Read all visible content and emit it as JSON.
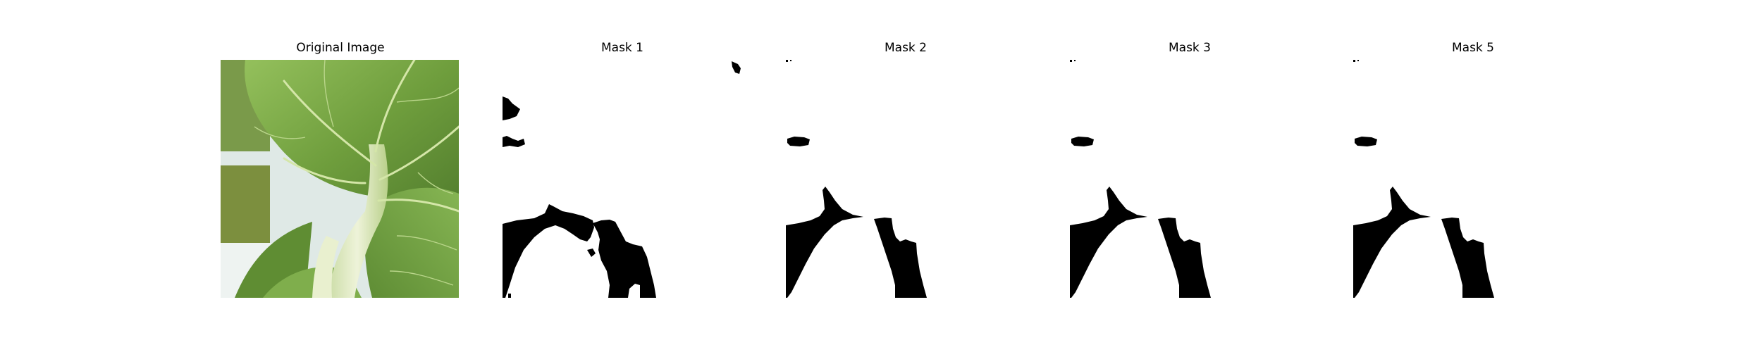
{
  "panels": [
    {
      "title": "Original Image",
      "kind": "photo",
      "subject": "leafy green vegetable (bok choy) leaf with pale stalk"
    },
    {
      "title": "Mask 1",
      "kind": "mask"
    },
    {
      "title": "Mask 2",
      "kind": "mask"
    },
    {
      "title": "Mask 3",
      "kind": "mask"
    },
    {
      "title": "Mask 5",
      "kind": "mask"
    }
  ],
  "colors": {
    "background": "#ffffff",
    "mask_fill": "#000000",
    "leaf_dark": "#4f7a2c",
    "leaf_light": "#8dbb57",
    "stalk": "#dfe8c3"
  }
}
